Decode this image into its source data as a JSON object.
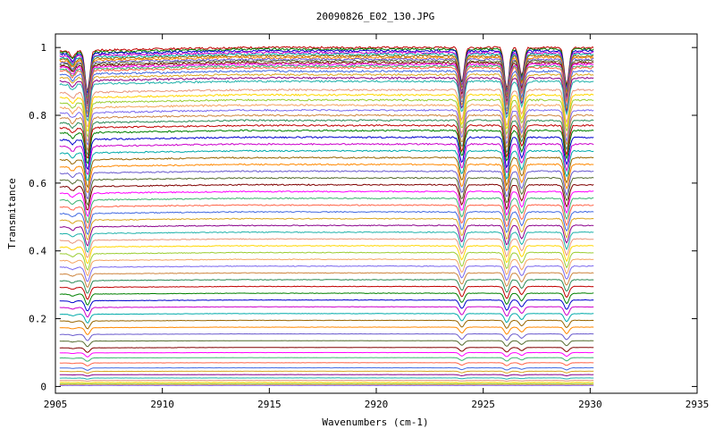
{
  "chart_data": {
    "type": "line",
    "title": "20090826_E02_130.JPG",
    "xlabel": "Wavenumbers (cm-1)",
    "ylabel": "Transmitance",
    "xlim": [
      2905,
      2935
    ],
    "ylim": [
      -0.02,
      1.04
    ],
    "x_ticks": [
      "2905",
      "2910",
      "2915",
      "2920",
      "2925",
      "2930",
      "2935"
    ],
    "y_ticks": [
      "0",
      "0.2",
      "0.4",
      "0.6",
      "0.8",
      "1"
    ],
    "x_tick_values": [
      2905,
      2910,
      2915,
      2920,
      2925,
      2930,
      2935
    ],
    "y_tick_values": [
      0,
      0.2,
      0.4,
      0.6,
      0.8,
      1
    ],
    "grid": false,
    "legend": "none",
    "x_data_range": [
      2905.2,
      2930.2
    ],
    "absorption_lines": [
      {
        "x": 2905.8,
        "relative_depth": 0.02
      },
      {
        "x": 2906.5,
        "relative_depth": 0.12
      },
      {
        "x": 2924.0,
        "relative_depth": 0.1
      },
      {
        "x": 2926.1,
        "relative_depth": 0.12
      },
      {
        "x": 2926.8,
        "relative_depth": 0.08
      },
      {
        "x": 2928.9,
        "relative_depth": 0.11
      }
    ],
    "series_baselines": [
      1.0,
      0.995,
      0.99,
      0.985,
      0.98,
      0.975,
      0.97,
      0.965,
      0.96,
      0.955,
      0.95,
      0.945,
      0.94,
      0.93,
      0.92,
      0.91,
      0.9,
      0.875,
      0.86,
      0.845,
      0.83,
      0.815,
      0.8,
      0.785,
      0.77,
      0.755,
      0.735,
      0.715,
      0.695,
      0.675,
      0.655,
      0.635,
      0.615,
      0.595,
      0.575,
      0.555,
      0.535,
      0.515,
      0.495,
      0.475,
      0.455,
      0.435,
      0.415,
      0.395,
      0.375,
      0.355,
      0.335,
      0.315,
      0.295,
      0.275,
      0.255,
      0.235,
      0.215,
      0.195,
      0.175,
      0.155,
      0.135,
      0.115,
      0.1,
      0.085,
      0.07,
      0.055,
      0.045,
      0.035,
      0.025,
      0.018,
      0.012,
      0.008,
      0.005,
      0.003
    ],
    "series_colors": [
      "#c00000",
      "#008000",
      "#0000cc",
      "#cc00cc",
      "#00aaaa",
      "#996600",
      "#ff8800",
      "#6a5acd",
      "#556b2f",
      "#800000",
      "#ff00ff",
      "#3cb371",
      "#ff6347",
      "#4169e1",
      "#daa520",
      "#8b008b",
      "#20b2aa",
      "#e9967a",
      "#ffd700",
      "#9acd32",
      "#f4a460",
      "#7b68ee",
      "#cd853f",
      "#2e8b57"
    ]
  }
}
